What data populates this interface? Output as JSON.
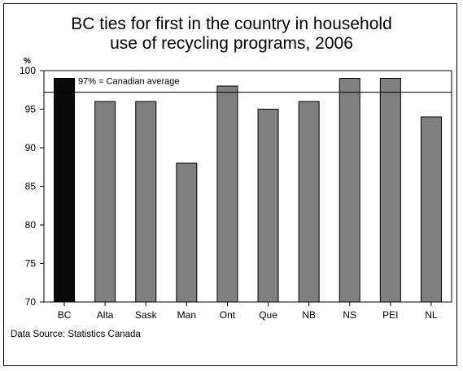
{
  "chart_data": {
    "type": "bar",
    "title_lines": [
      "BC ties for first in the country in household",
      "use of recycling programs, 2006"
    ],
    "ylabel": "%",
    "ylim": [
      70,
      100
    ],
    "yticks": [
      70,
      75,
      80,
      85,
      90,
      95,
      100
    ],
    "categories": [
      "BC",
      "Alta",
      "Sask",
      "Man",
      "Ont",
      "Que",
      "NB",
      "NS",
      "PEI",
      "NL"
    ],
    "values": [
      99,
      96,
      96,
      88,
      98,
      95,
      96,
      99,
      99,
      94
    ],
    "reference_line": {
      "value": 97.2,
      "label": "97% = Canadian average"
    },
    "grid": false,
    "colors": {
      "highlight": "#0a0a0a",
      "default": "#808080",
      "outline": "#000000"
    }
  },
  "source_text": "Data Source: Statistics Canada"
}
